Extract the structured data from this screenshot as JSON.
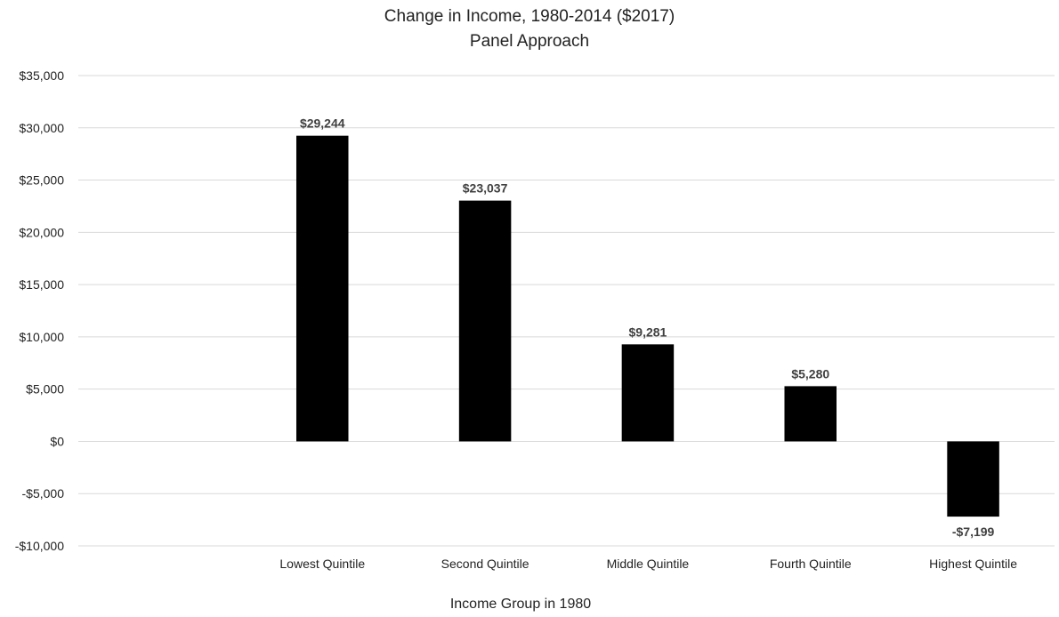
{
  "chart_data": {
    "type": "bar",
    "title": "Change in Income, 1980-2014 ($2017)",
    "subtitle": "Panel Approach",
    "xlabel": "Income Group in 1980",
    "ylabel": "",
    "categories": [
      "",
      "Lowest Quintile",
      "Second Quintile",
      "Middle Quintile",
      "Fourth Quintile",
      "Highest Quintile"
    ],
    "values": [
      null,
      29244,
      23037,
      9281,
      5280,
      -7199
    ],
    "data_labels": [
      "",
      "$29,244",
      "$23,037",
      "$9,281",
      "$5,280",
      "-$7,199"
    ],
    "ylim": [
      -10000,
      35000
    ],
    "yticks": [
      35000,
      30000,
      25000,
      20000,
      15000,
      10000,
      5000,
      0,
      -5000,
      -10000
    ],
    "ytick_labels": [
      "$35,000",
      "$30,000",
      "$25,000",
      "$20,000",
      "$15,000",
      "$10,000",
      "$5,000",
      "$0",
      "-$5,000",
      "-$10,000"
    ],
    "grid": true,
    "legend": "none",
    "bar_color": "#000000",
    "grid_color": "#d9d9d9"
  }
}
